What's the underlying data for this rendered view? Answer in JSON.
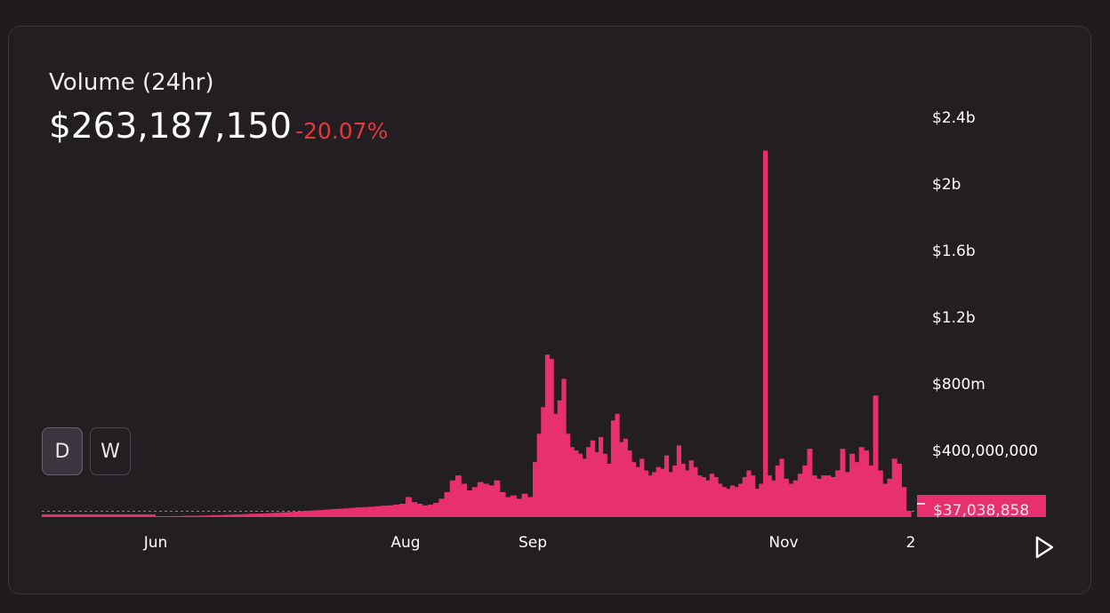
{
  "header": {
    "title": "Volume (24hr)",
    "value": "$263,187,150",
    "change": "-20.07%"
  },
  "controls": {
    "day_label": "D",
    "week_label": "W",
    "active": "D"
  },
  "colors": {
    "bar": "#e8306f",
    "negative": "#e5393b",
    "background": "#221e22"
  },
  "icons": {
    "play": "play-icon"
  },
  "chart_data": {
    "type": "bar",
    "title": "Volume (24hr)",
    "y_axis": {
      "ticks": [
        {
          "value": 400000000,
          "label": "$400,000,000"
        },
        {
          "value": 800000000,
          "label": "$800m"
        },
        {
          "value": 1200000000,
          "label": "$1.2b"
        },
        {
          "value": 1600000000,
          "label": "$1.6b"
        },
        {
          "value": 2000000000,
          "label": "$2b"
        },
        {
          "value": 2400000000,
          "label": "$2.4b"
        }
      ],
      "range": [
        0,
        2400000000
      ]
    },
    "x_axis": {
      "labels": [
        "Jun",
        "Aug",
        "Sep",
        "Nov",
        "2"
      ]
    },
    "current": {
      "value": 37038858,
      "label": "$37,038,858"
    },
    "baseline_dotted": true,
    "series": [
      {
        "segments": [
          {
            "from": "Jun",
            "to": "Aug",
            "values": [
              5000000,
              5000000,
              6000000,
              6000000,
              7000000,
              8000000,
              8000000,
              9000000,
              10000000,
              12000000,
              12000000,
              14000000,
              15000000,
              16000000,
              18000000,
              20000000,
              20000000,
              22000000,
              24000000,
              26000000,
              28000000,
              30000000,
              32000000,
              35000000,
              38000000,
              40000000,
              42000000,
              45000000,
              48000000,
              50000000,
              52000000,
              55000000,
              58000000,
              60000000,
              62000000,
              65000000,
              68000000,
              70000000,
              75000000,
              80000000
            ]
          },
          {
            "from": "Aug",
            "to": "Sep",
            "values": [
              120000000,
              90000000,
              80000000,
              70000000,
              75000000,
              85000000,
              110000000,
              150000000,
              220000000,
              250000000,
              200000000,
              160000000,
              180000000,
              210000000,
              200000000,
              190000000,
              220000000,
              150000000,
              120000000,
              130000000,
              110000000,
              140000000,
              120000000
            ]
          },
          {
            "from": "Sep",
            "to": "Nov",
            "values": [
              330000000,
              500000000,
              660000000,
              975000000,
              950000000,
              620000000,
              700000000,
              830000000,
              500000000,
              420000000,
              400000000,
              380000000,
              350000000,
              420000000,
              460000000,
              390000000,
              480000000,
              380000000,
              320000000,
              580000000,
              620000000,
              450000000,
              470000000,
              400000000,
              330000000,
              300000000,
              350000000,
              280000000,
              250000000,
              270000000,
              300000000,
              290000000,
              370000000,
              270000000,
              310000000,
              430000000,
              320000000,
              280000000,
              340000000,
              300000000,
              250000000,
              240000000,
              220000000,
              260000000,
              240000000,
              200000000,
              180000000,
              170000000,
              190000000,
              180000000,
              200000000,
              240000000,
              280000000,
              250000000,
              170000000,
              200000000,
              2200000000,
              250000000,
              220000000,
              310000000,
              350000000
            ]
          },
          {
            "from": "Nov",
            "to": "2",
            "values": [
              230000000,
              200000000,
              220000000,
              260000000,
              310000000,
              410000000,
              250000000,
              230000000,
              250000000,
              250000000,
              240000000,
              280000000,
              410000000,
              270000000,
              380000000,
              330000000,
              420000000,
              400000000,
              310000000,
              730000000,
              280000000,
              200000000,
              230000000,
              350000000,
              320000000,
              180000000,
              37038858
            ]
          }
        ]
      }
    ]
  }
}
